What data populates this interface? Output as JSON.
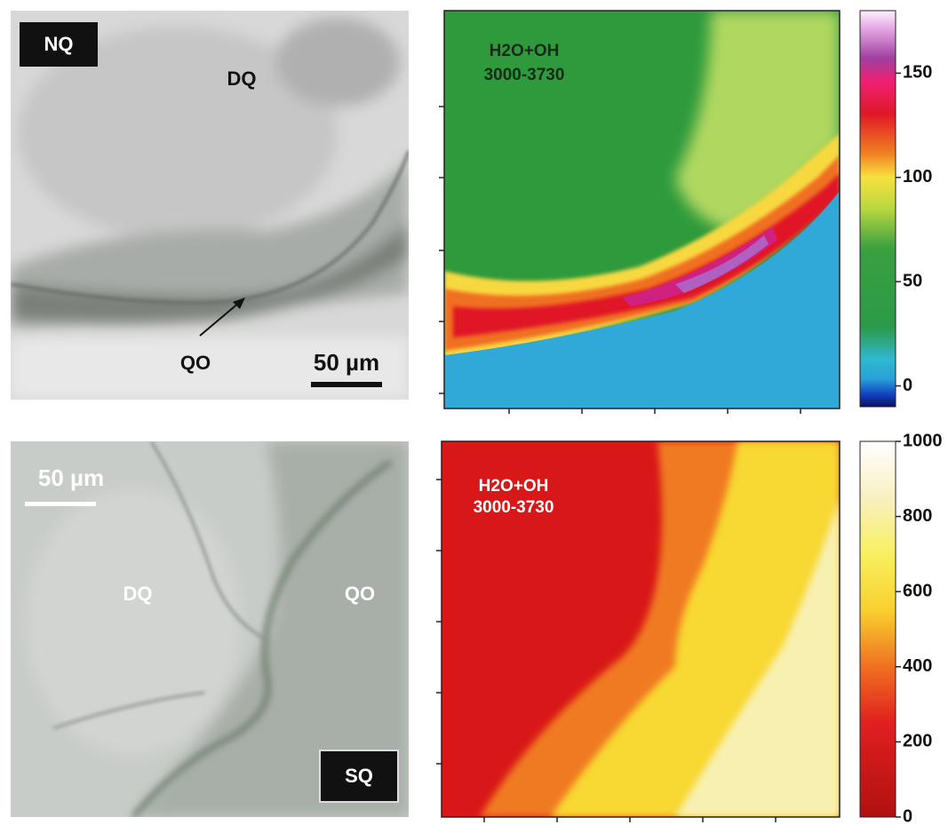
{
  "panels": [
    {
      "sample": "NQ",
      "regions": [
        "DQ",
        "QO"
      ],
      "scale_bar": "50 µm"
    },
    {
      "sample": "SQ",
      "regions": [
        "DQ",
        "QO"
      ],
      "scale_bar": "50 µm"
    }
  ],
  "maps": [
    {
      "annotation": [
        "H2O+OH",
        "3000-3730"
      ],
      "colorbar": {
        "lim": [
          -10,
          180
        ],
        "ticks": [
          0,
          50,
          100,
          150
        ]
      }
    },
    {
      "annotation": [
        "H2O+OH",
        "3000-3730"
      ],
      "colorbar": {
        "lim": [
          0,
          1000
        ],
        "ticks": [
          0,
          200,
          400,
          600,
          800,
          1000
        ]
      }
    }
  ]
}
